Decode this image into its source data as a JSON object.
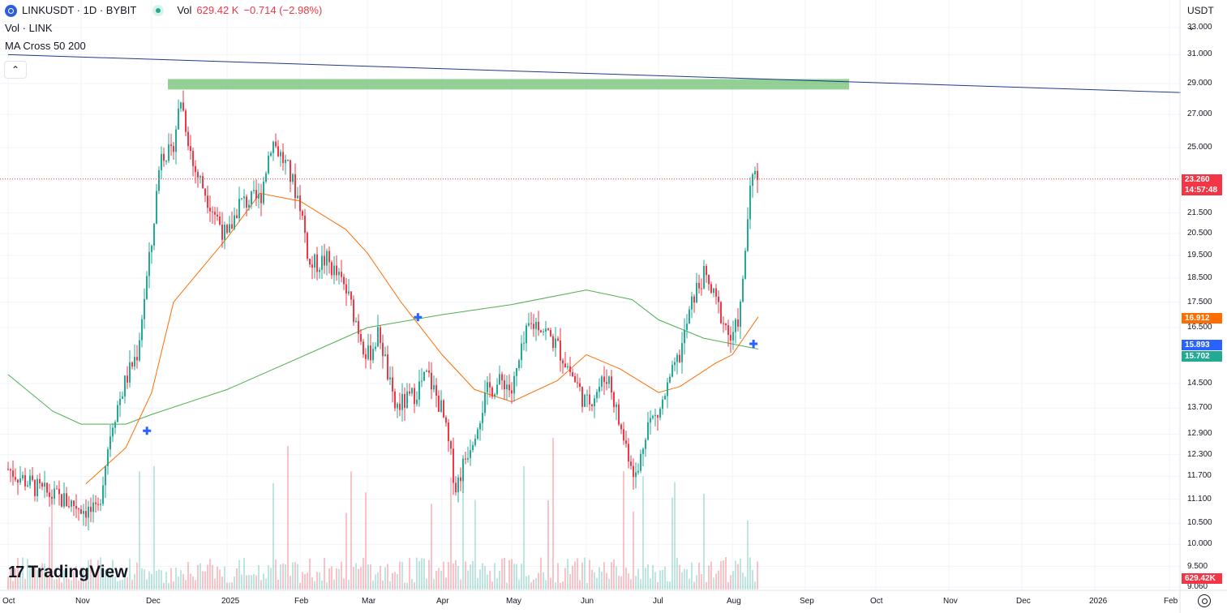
{
  "legend": {
    "symbol": "LINKUSDT · 1D · BYBIT",
    "vol_label": "Vol",
    "vol_value": "629.42 K",
    "vol_change": "−0.714 (−2.98%)",
    "line2": "Vol · LINK",
    "line3": "MA Cross 50 200",
    "collapse_icon": "chevron-up-icon"
  },
  "currency": "USDT ⌄",
  "price_axis_labels": [
    "33.000",
    "31.000",
    "29.000",
    "27.000",
    "25.000",
    "21.500",
    "20.500",
    "19.500",
    "18.500",
    "17.500",
    "16.500",
    "14.500",
    "13.700",
    "12.900",
    "12.300",
    "11.700",
    "11.100",
    "10.500",
    "10.000",
    "9.500",
    "9.060"
  ],
  "price_tags": [
    {
      "value": "23.260",
      "sub": "14:57:48",
      "color": "#f23645"
    },
    {
      "value": "16.912",
      "color": "#ff6d00"
    },
    {
      "value": "15.893",
      "color": "#2962ff"
    },
    {
      "value": "15.702",
      "color": "#22ab94"
    },
    {
      "value": "629.42K",
      "color": "#f23645"
    }
  ],
  "time_axis_labels": [
    "Oct",
    "Nov",
    "Dec",
    "2025",
    "Feb",
    "Mar",
    "Apr",
    "May",
    "Jun",
    "Jul",
    "Aug",
    "Sep",
    "Oct",
    "Nov",
    "Dec",
    "2026",
    "Feb"
  ],
  "logo_text": "TradingView",
  "colors": {
    "up": "#22ab94",
    "down": "#f23645",
    "ma50": "#ff6d00",
    "ma200": "#4caf50",
    "trendline": "#1e3a8a",
    "zone": "#81c784",
    "cross": "#2962ff"
  },
  "chart_data": {
    "type": "candlestick",
    "symbol": "LINKUSDT",
    "interval": "1D",
    "exchange": "BYBIT",
    "last_price": 23.26,
    "price_scale": "log",
    "ylim": [
      9.06,
      33.0
    ],
    "ma50_last": 16.912,
    "ma200_last": 15.702,
    "cross_marker_last": 15.893,
    "close_path": [
      [
        "Oct",
        11.9
      ],
      [
        "Oct 15",
        11.3
      ],
      [
        "Nov",
        10.9
      ],
      [
        "Nov 8",
        10.7
      ],
      [
        "Nov 14",
        13.2
      ],
      [
        "Nov 20",
        14.6
      ],
      [
        "Nov 25",
        15.6
      ],
      [
        "Dec",
        20.0
      ],
      [
        "Dec 5",
        25.0
      ],
      [
        "Dec 9",
        24.5
      ],
      [
        "Dec 13",
        28.0
      ],
      [
        "Dec 18",
        24.0
      ],
      [
        "Dec 24",
        22.3
      ],
      [
        "2025",
        20.2
      ],
      [
        "Jan 6",
        22.0
      ],
      [
        "Jan 15",
        22.2
      ],
      [
        "Jan 20",
        25.5
      ],
      [
        "Jan 26",
        24.0
      ],
      [
        "Feb",
        22.0
      ],
      [
        "Feb 5",
        19.0
      ],
      [
        "Feb 12",
        19.3
      ],
      [
        "Feb 20",
        18.0
      ],
      [
        "Mar",
        15.4
      ],
      [
        "Mar 6",
        16.3
      ],
      [
        "Mar 12",
        13.7
      ],
      [
        "Mar 19",
        14.0
      ],
      [
        "Mar 26",
        14.8
      ],
      [
        "Apr",
        13.6
      ],
      [
        "Apr 7",
        11.4
      ],
      [
        "Apr 14",
        12.8
      ],
      [
        "Apr 21",
        14.3
      ],
      [
        "Apr 28",
        14.6
      ],
      [
        "May",
        14.2
      ],
      [
        "May 8",
        16.5
      ],
      [
        "May 12",
        16.7
      ],
      [
        "May 20",
        15.8
      ],
      [
        "Jun",
        13.8
      ],
      [
        "Jun 10",
        14.8
      ],
      [
        "Jun 15",
        13.1
      ],
      [
        "Jun 22",
        11.6
      ],
      [
        "Jun 26",
        13.2
      ],
      [
        "Jul",
        13.5
      ],
      [
        "Jul 10",
        15.5
      ],
      [
        "Jul 16",
        17.8
      ],
      [
        "Jul 20",
        18.6
      ],
      [
        "Jul 26",
        17.3
      ],
      [
        "Aug",
        15.9
      ],
      [
        "Aug 5",
        17.5
      ],
      [
        "Aug 8",
        22.0
      ],
      [
        "Aug 11",
        24.2
      ],
      [
        "Aug 12",
        23.26
      ]
    ],
    "ma50_path": [
      [
        "Nov 3",
        11.5
      ],
      [
        "Nov 20",
        12.5
      ],
      [
        "Dec",
        14.2
      ],
      [
        "Dec 10",
        17.5
      ],
      [
        "2025",
        20.3
      ],
      [
        "Jan 15",
        22.5
      ],
      [
        "Feb",
        22.1
      ],
      [
        "Feb 20",
        20.7
      ],
      [
        "Mar",
        19.6
      ],
      [
        "Mar 15",
        17.5
      ],
      [
        "Apr",
        15.5
      ],
      [
        "Apr 15",
        14.3
      ],
      [
        "May",
        13.9
      ],
      [
        "May 20",
        14.6
      ],
      [
        "Jun",
        15.5
      ],
      [
        "Jun 15",
        15.0
      ],
      [
        "Jul",
        14.2
      ],
      [
        "Jul 10",
        14.4
      ],
      [
        "Jul 25",
        15.2
      ],
      [
        "Aug",
        15.5
      ],
      [
        "Aug 12",
        16.912
      ]
    ],
    "ma200_path": [
      [
        "Oct",
        14.8
      ],
      [
        "Oct 20",
        13.6
      ],
      [
        "Nov",
        13.2
      ],
      [
        "Nov 20",
        13.2
      ],
      [
        "Dec",
        13.5
      ],
      [
        "2025",
        14.3
      ],
      [
        "Feb",
        15.4
      ],
      [
        "Mar",
        16.5
      ],
      [
        "Apr",
        17.0
      ],
      [
        "May",
        17.4
      ],
      [
        "Jun",
        18.0
      ],
      [
        "Jun 20",
        17.6
      ],
      [
        "Jul",
        16.8
      ],
      [
        "Jul 20",
        16.1
      ],
      [
        "Aug 12",
        15.702
      ]
    ],
    "ma_cross_markers": [
      [
        "Nov 29",
        13.0
      ],
      [
        "Mar 22",
        16.9
      ],
      [
        "Aug 10",
        15.893
      ]
    ],
    "resistance_zone": [
      28.6,
      29.3
    ],
    "trendline": [
      [
        "Oct",
        31.0
      ],
      [
        "2026 Feb",
        28.4
      ]
    ],
    "volume_last": "629.42K"
  }
}
